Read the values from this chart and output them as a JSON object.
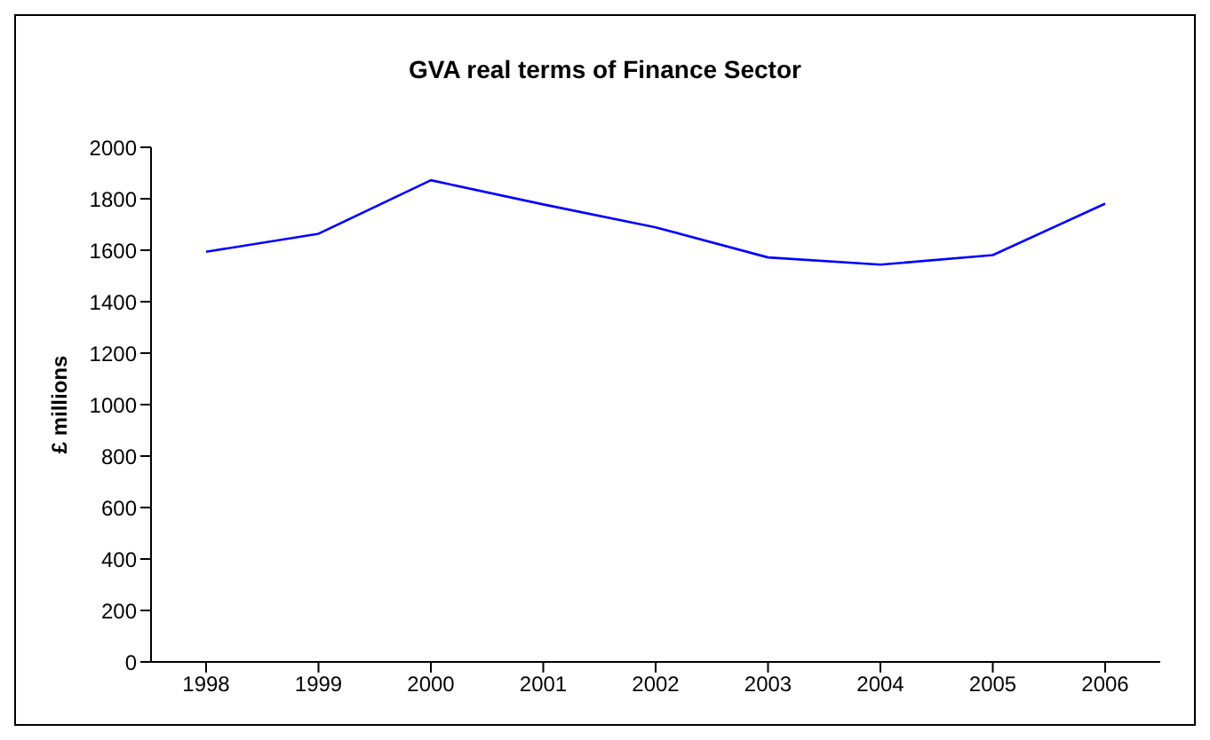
{
  "chart_data": {
    "type": "line",
    "title": "GVA real terms of Finance Sector",
    "ylabel": "£ millions",
    "categories": [
      "1998",
      "1999",
      "2000",
      "2001",
      "2002",
      "2003",
      "2004",
      "2005",
      "2006"
    ],
    "series": [
      {
        "color": "#0000ff",
        "values": [
          1594,
          1664,
          1872,
          1778,
          1689,
          1572,
          1544,
          1581,
          1781
        ]
      }
    ],
    "ylim": [
      0,
      2000
    ],
    "yticks": [
      0,
      200,
      400,
      600,
      800,
      1000,
      1200,
      1400,
      1600,
      1800,
      2000
    ],
    "grid": false,
    "legend": false,
    "marker": "none",
    "line_style": "solid"
  }
}
